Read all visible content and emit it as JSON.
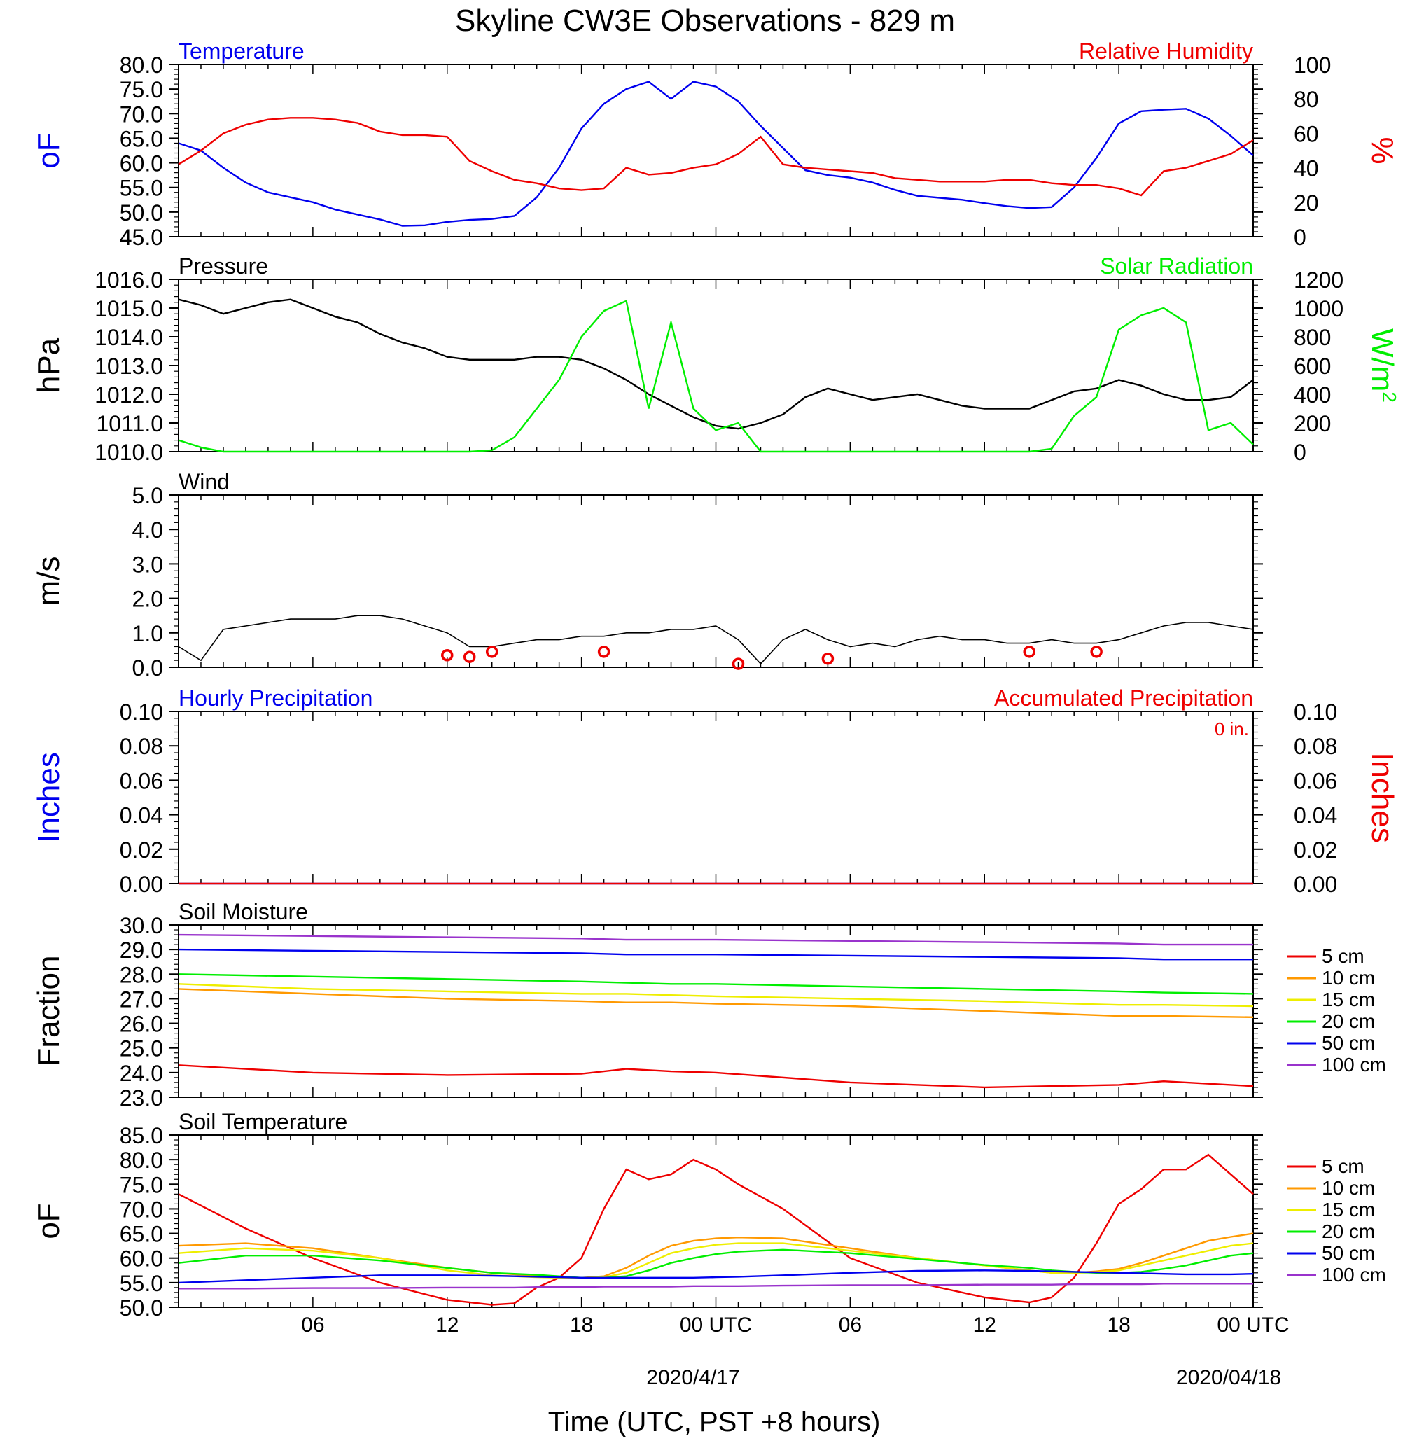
{
  "figure": {
    "title": "Skyline CW3E Observations - 829 m",
    "xlabel": "Time (UTC, PST +8 hours)",
    "x_ticks": [
      "06",
      "12",
      "18",
      "00 UTC",
      "06",
      "12",
      "18",
      "00 UTC"
    ],
    "date_labels": [
      "2020/4/17",
      "2020/04/18"
    ]
  },
  "colors": {
    "blue": "#0000ee",
    "red": "#ee0000",
    "green": "#00ee00",
    "black": "#000000",
    "orange": "#ff9900",
    "yellow": "#eeee00",
    "purple": "#9933cc"
  },
  "chart_data": [
    {
      "type": "line",
      "name": "temperature-humidity",
      "left_title": "Temperature",
      "right_title": "Relative Humidity",
      "ylabel_left": "oF",
      "ylabel_right": "%",
      "ylim_left": [
        45,
        80
      ],
      "ylim_right": [
        0,
        100
      ],
      "yticks_left": [
        "80.0",
        "75.0",
        "70.0",
        "65.0",
        "60.0",
        "55.0",
        "50.0",
        "45.0"
      ],
      "yticks_right": [
        "100",
        "80",
        "60",
        "40",
        "20",
        "0"
      ],
      "x_hours": [
        0,
        1,
        2,
        3,
        4,
        5,
        6,
        7,
        8,
        9,
        10,
        11,
        12,
        13,
        14,
        15,
        16,
        17,
        18,
        19,
        20,
        21,
        22,
        23,
        24,
        25,
        26,
        27,
        28,
        29,
        30,
        31,
        32,
        33,
        34,
        35,
        36,
        37,
        38,
        39,
        40,
        41,
        42,
        43,
        44,
        45,
        46,
        47,
        48
      ],
      "series": [
        {
          "name": "Temperature",
          "axis": "left",
          "color": "blue",
          "values": [
            64,
            62.5,
            59,
            56,
            54,
            53,
            52,
            50.5,
            49.5,
            48.5,
            47.2,
            47.3,
            48,
            48.4,
            48.6,
            49.2,
            53,
            59,
            67,
            72,
            75,
            76.5,
            73,
            76.5,
            75.5,
            72.5,
            67.5,
            63,
            58.5,
            57.5,
            57,
            56,
            54.5,
            53.3,
            52.9,
            52.5,
            51.8,
            51.2,
            50.8,
            51,
            55,
            61,
            68,
            70.5,
            70.8,
            71,
            69,
            65.5,
            61.5
          ]
        },
        {
          "name": "Relative Humidity",
          "axis": "right",
          "color": "red",
          "values": [
            42,
            50,
            60,
            65,
            68,
            69,
            69,
            68,
            66,
            61,
            59,
            59,
            58,
            44,
            38,
            33,
            31,
            28,
            27,
            28,
            40,
            36,
            37,
            40,
            42,
            48,
            58,
            42,
            40,
            39,
            38,
            37,
            34,
            33,
            32,
            32,
            32,
            33,
            33,
            31,
            30,
            30,
            28,
            24,
            38,
            40,
            44,
            48,
            56
          ]
        }
      ]
    },
    {
      "type": "line",
      "name": "pressure-solar",
      "left_title": "Pressure",
      "right_title": "Solar Radiation",
      "ylabel_left": "hPa",
      "ylabel_right": "W/m",
      "ylabel_right_sup": "2",
      "ylim_left": [
        1010,
        1016
      ],
      "ylim_right": [
        0,
        1200
      ],
      "yticks_left": [
        "1016.0",
        "1015.0",
        "1014.0",
        "1013.0",
        "1012.0",
        "1011.0",
        "1010.0"
      ],
      "yticks_right": [
        "1200",
        "1000",
        "800",
        "600",
        "400",
        "200",
        "0"
      ],
      "x_hours": [
        0,
        1,
        2,
        3,
        4,
        5,
        6,
        7,
        8,
        9,
        10,
        11,
        12,
        13,
        14,
        15,
        16,
        17,
        18,
        19,
        20,
        21,
        22,
        23,
        24,
        25,
        26,
        27,
        28,
        29,
        30,
        31,
        32,
        33,
        34,
        35,
        36,
        37,
        38,
        39,
        40,
        41,
        42,
        43,
        44,
        45,
        46,
        47,
        48
      ],
      "series": [
        {
          "name": "Pressure",
          "axis": "left",
          "color": "black",
          "values": [
            1015.3,
            1015.1,
            1014.8,
            1015,
            1015.2,
            1015.3,
            1015,
            1014.7,
            1014.5,
            1014.1,
            1013.8,
            1013.6,
            1013.3,
            1013.2,
            1013.2,
            1013.2,
            1013.3,
            1013.3,
            1013.2,
            1012.9,
            1012.5,
            1012,
            1011.6,
            1011.2,
            1010.9,
            1010.8,
            1011,
            1011.3,
            1011.9,
            1012.2,
            1012,
            1011.8,
            1011.9,
            1012,
            1011.8,
            1011.6,
            1011.5,
            1011.5,
            1011.5,
            1011.8,
            1012.1,
            1012.2,
            1012.5,
            1012.3,
            1012,
            1011.8,
            1011.8,
            1011.9,
            1012.5
          ]
        },
        {
          "name": "Solar Radiation",
          "axis": "right",
          "color": "green",
          "values": [
            80,
            30,
            0,
            0,
            0,
            0,
            0,
            0,
            0,
            0,
            0,
            0,
            0,
            0,
            10,
            100,
            300,
            500,
            800,
            980,
            1050,
            300,
            900,
            300,
            150,
            200,
            0,
            0,
            0,
            0,
            0,
            0,
            0,
            0,
            0,
            0,
            0,
            0,
            0,
            20,
            250,
            380,
            850,
            950,
            1000,
            900,
            150,
            200,
            50
          ]
        }
      ]
    },
    {
      "type": "line",
      "name": "wind",
      "left_title": "Wind",
      "ylabel_left": "m/s",
      "ylim_left": [
        0,
        5
      ],
      "yticks_left": [
        "5.0",
        "4.0",
        "3.0",
        "2.0",
        "1.0",
        "0.0"
      ],
      "x_hours": [
        0,
        1,
        2,
        3,
        4,
        5,
        6,
        7,
        8,
        9,
        10,
        11,
        12,
        13,
        14,
        15,
        16,
        17,
        18,
        19,
        20,
        21,
        22,
        23,
        24,
        25,
        26,
        27,
        28,
        29,
        30,
        31,
        32,
        33,
        34,
        35,
        36,
        37,
        38,
        39,
        40,
        41,
        42,
        43,
        44,
        45,
        46,
        47,
        48
      ],
      "series": [
        {
          "name": "Wind speed",
          "axis": "left",
          "color": "black",
          "values": [
            0.6,
            0.2,
            1.1,
            1.2,
            1.3,
            1.4,
            1.4,
            1.4,
            1.5,
            1.5,
            1.4,
            1.2,
            1,
            0.6,
            0.6,
            0.7,
            0.8,
            0.8,
            0.9,
            0.9,
            1,
            1,
            1.1,
            1.1,
            1.2,
            0.8,
            0.1,
            0.8,
            1.1,
            0.8,
            0.6,
            0.7,
            0.6,
            0.8,
            0.9,
            0.8,
            0.8,
            0.7,
            0.7,
            0.8,
            0.7,
            0.7,
            0.8,
            1,
            1.2,
            1.3,
            1.3,
            1.2,
            1.1
          ]
        },
        {
          "name": "Calm wind markers",
          "color": "red",
          "x": [
            12,
            13,
            14,
            19,
            25,
            29,
            38,
            41
          ],
          "values": [
            0.35,
            0.3,
            0.45,
            0.45,
            0.1,
            0.25,
            0.45,
            0.45
          ]
        }
      ]
    },
    {
      "type": "line",
      "name": "precipitation",
      "left_title": "Hourly Precipitation",
      "right_title": "Accumulated Precipitation",
      "annotation": "0 in.",
      "ylabel_left": "Inches",
      "ylabel_right": "Inches",
      "ylim_left": [
        0,
        0.1
      ],
      "ylim_right": [
        0,
        0.1
      ],
      "yticks_left": [
        "0.10",
        "0.08",
        "0.06",
        "0.04",
        "0.02",
        "0.00"
      ],
      "yticks_right": [
        "0.10",
        "0.08",
        "0.06",
        "0.04",
        "0.02",
        "0.00"
      ],
      "x_hours": [
        0,
        48
      ],
      "series": [
        {
          "name": "Hourly Precipitation",
          "axis": "left",
          "color": "blue",
          "values": [
            0,
            0
          ]
        },
        {
          "name": "Accumulated Precipitation",
          "axis": "right",
          "color": "red",
          "values": [
            0,
            0
          ]
        }
      ]
    },
    {
      "type": "line",
      "name": "soil-moisture",
      "left_title": "Soil Moisture",
      "ylabel_left": "Fraction",
      "ylim_left": [
        23,
        30
      ],
      "yticks_left": [
        "30.0",
        "29.0",
        "28.0",
        "27.0",
        "26.0",
        "25.0",
        "24.0",
        "23.0"
      ],
      "x_hours": [
        0,
        6,
        12,
        18,
        20,
        22,
        24,
        30,
        36,
        42,
        44,
        48
      ],
      "series": [
        {
          "name": "5 cm",
          "color": "red",
          "values": [
            24.3,
            24,
            23.9,
            23.95,
            24.15,
            24.05,
            24,
            23.6,
            23.4,
            23.5,
            23.65,
            23.45
          ]
        },
        {
          "name": "10 cm",
          "color": "orange",
          "values": [
            27.4,
            27.2,
            27,
            26.9,
            26.85,
            26.85,
            26.8,
            26.7,
            26.5,
            26.3,
            26.3,
            26.25
          ]
        },
        {
          "name": "15 cm",
          "color": "yellow",
          "values": [
            27.6,
            27.4,
            27.3,
            27.2,
            27.2,
            27.15,
            27.1,
            27,
            26.9,
            26.75,
            26.75,
            26.7
          ]
        },
        {
          "name": "20 cm",
          "color": "green",
          "values": [
            28,
            27.9,
            27.8,
            27.7,
            27.65,
            27.6,
            27.6,
            27.5,
            27.4,
            27.3,
            27.25,
            27.2
          ]
        },
        {
          "name": "50 cm",
          "color": "blue",
          "values": [
            29,
            28.95,
            28.9,
            28.85,
            28.8,
            28.8,
            28.8,
            28.75,
            28.7,
            28.65,
            28.6,
            28.6
          ]
        },
        {
          "name": "100 cm",
          "color": "purple",
          "values": [
            29.6,
            29.55,
            29.5,
            29.45,
            29.4,
            29.4,
            29.4,
            29.35,
            29.3,
            29.25,
            29.2,
            29.2
          ]
        }
      ]
    },
    {
      "type": "line",
      "name": "soil-temperature",
      "left_title": "Soil Temperature",
      "ylabel_left": "oF",
      "ylim_left": [
        50,
        85
      ],
      "yticks_left": [
        "85.0",
        "80.0",
        "75.0",
        "70.0",
        "65.0",
        "60.0",
        "55.0",
        "50.0"
      ],
      "x_hours": [
        0,
        3,
        6,
        9,
        12,
        14,
        15,
        16,
        17,
        18,
        19,
        20,
        21,
        22,
        23,
        24,
        25,
        27,
        30,
        33,
        36,
        38,
        39,
        40,
        41,
        42,
        43,
        44,
        45,
        46,
        47,
        48
      ],
      "series": [
        {
          "name": "5 cm",
          "color": "red",
          "values": [
            73,
            66,
            60,
            55,
            51.5,
            50.5,
            50.8,
            54,
            56,
            60,
            70,
            78,
            76,
            77,
            80,
            78,
            75,
            70,
            60,
            55,
            52,
            51,
            52,
            56,
            63,
            71,
            74,
            78,
            78,
            81,
            77,
            73
          ]
        },
        {
          "name": "10 cm",
          "color": "orange",
          "values": [
            62.5,
            63,
            62,
            60,
            58,
            57,
            56.7,
            56.4,
            56.2,
            56,
            56.3,
            58,
            60.5,
            62.5,
            63.5,
            64,
            64.2,
            64,
            62,
            60,
            58.5,
            57.5,
            57,
            57,
            57.3,
            57.8,
            59,
            60.5,
            62,
            63.5,
            64.3,
            65
          ]
        },
        {
          "name": "15 cm",
          "color": "yellow",
          "values": [
            61,
            62,
            61.5,
            60,
            57.5,
            56.5,
            56.3,
            56.1,
            56,
            56,
            56.1,
            57,
            59,
            61,
            62,
            62.7,
            63,
            63,
            61.5,
            60,
            58.5,
            57.5,
            57,
            57,
            57.1,
            57.5,
            58.5,
            59.5,
            60.5,
            61.5,
            62.5,
            63
          ]
        },
        {
          "name": "20 cm",
          "color": "green",
          "values": [
            59,
            60.5,
            60.5,
            59.5,
            58,
            57,
            56.8,
            56.6,
            56.3,
            56,
            56,
            56.3,
            57.5,
            59,
            60,
            60.8,
            61.3,
            61.7,
            61,
            59.8,
            58.6,
            58,
            57.5,
            57.2,
            57,
            57,
            57.2,
            57.8,
            58.5,
            59.5,
            60.5,
            61
          ]
        },
        {
          "name": "50 cm",
          "color": "blue",
          "values": [
            55,
            55.5,
            56,
            56.5,
            56.5,
            56.4,
            56.3,
            56.2,
            56.1,
            56,
            56,
            56,
            56,
            56,
            56,
            56.1,
            56.2,
            56.5,
            57,
            57.4,
            57.5,
            57.4,
            57.3,
            57.2,
            57.1,
            57,
            56.9,
            56.8,
            56.7,
            56.7,
            56.7,
            56.8
          ]
        },
        {
          "name": "100 cm",
          "color": "purple",
          "values": [
            53.8,
            53.8,
            53.9,
            53.9,
            54,
            54,
            54,
            54.1,
            54.1,
            54.1,
            54.2,
            54.2,
            54.2,
            54.2,
            54.3,
            54.3,
            54.3,
            54.4,
            54.5,
            54.5,
            54.6,
            54.6,
            54.6,
            54.7,
            54.7,
            54.7,
            54.7,
            54.8,
            54.8,
            54.8,
            54.8,
            54.8
          ]
        }
      ]
    }
  ]
}
